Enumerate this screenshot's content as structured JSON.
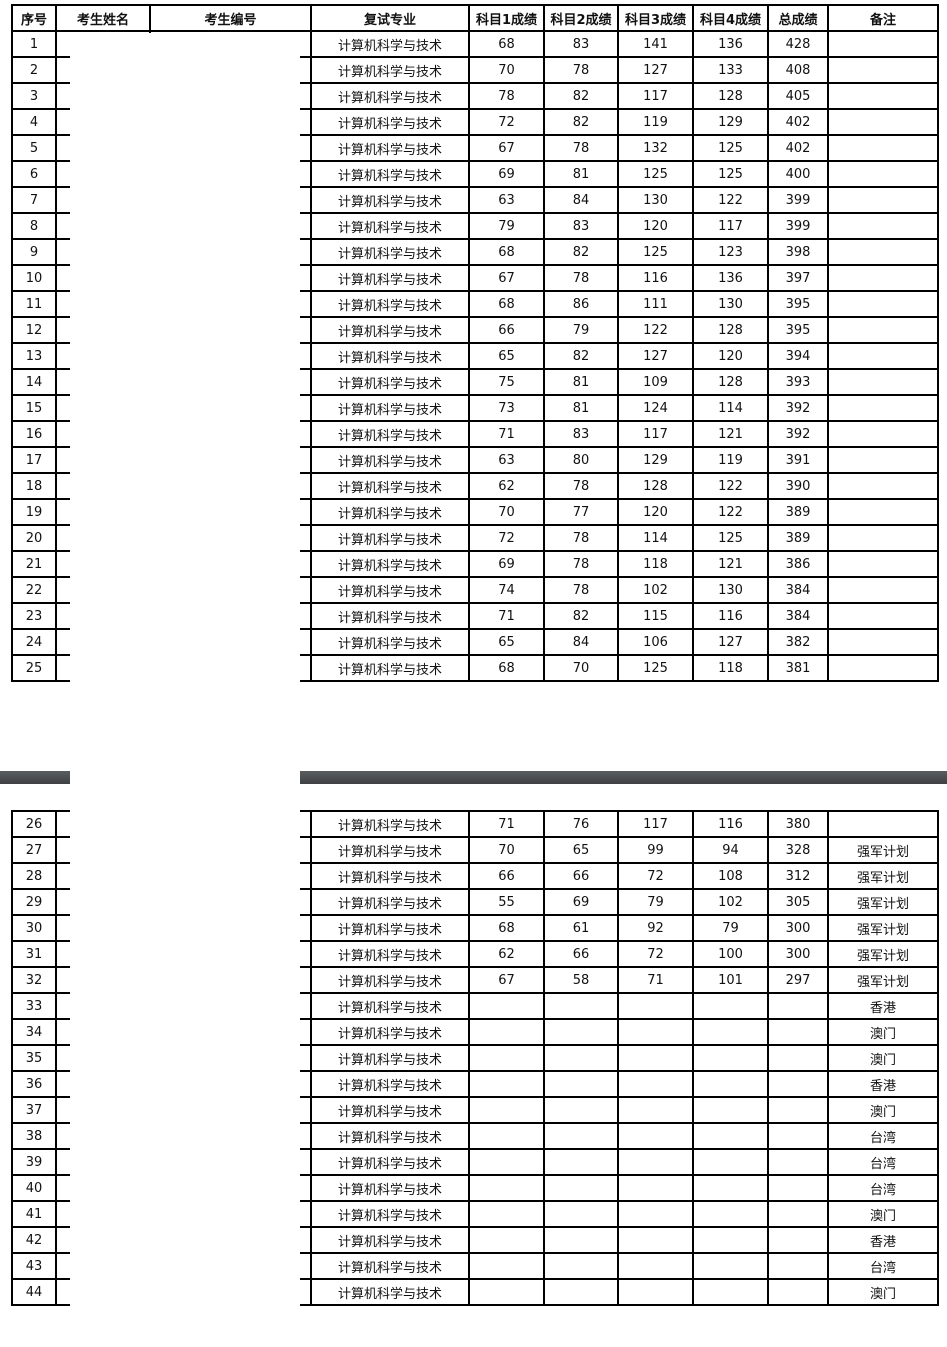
{
  "headers": [
    "序号",
    "考生姓名",
    "考生编号",
    "复试专业",
    "科目1成绩",
    "科目2成绩",
    "科目3成绩",
    "科目4成绩",
    "总成绩",
    "备注"
  ],
  "rows_page1": [
    [
      "1",
      "计算机科学与技术",
      "68",
      "83",
      "141",
      "136",
      "428",
      ""
    ],
    [
      "2",
      "计算机科学与技术",
      "70",
      "78",
      "127",
      "133",
      "408",
      ""
    ],
    [
      "3",
      "计算机科学与技术",
      "78",
      "82",
      "117",
      "128",
      "405",
      ""
    ],
    [
      "4",
      "计算机科学与技术",
      "72",
      "82",
      "119",
      "129",
      "402",
      ""
    ],
    [
      "5",
      "计算机科学与技术",
      "67",
      "78",
      "132",
      "125",
      "402",
      ""
    ],
    [
      "6",
      "计算机科学与技术",
      "69",
      "81",
      "125",
      "125",
      "400",
      ""
    ],
    [
      "7",
      "计算机科学与技术",
      "63",
      "84",
      "130",
      "122",
      "399",
      ""
    ],
    [
      "8",
      "计算机科学与技术",
      "79",
      "83",
      "120",
      "117",
      "399",
      ""
    ],
    [
      "9",
      "计算机科学与技术",
      "68",
      "82",
      "125",
      "123",
      "398",
      ""
    ],
    [
      "10",
      "计算机科学与技术",
      "67",
      "78",
      "116",
      "136",
      "397",
      ""
    ],
    [
      "11",
      "计算机科学与技术",
      "68",
      "86",
      "111",
      "130",
      "395",
      ""
    ],
    [
      "12",
      "计算机科学与技术",
      "66",
      "79",
      "122",
      "128",
      "395",
      ""
    ],
    [
      "13",
      "计算机科学与技术",
      "65",
      "82",
      "127",
      "120",
      "394",
      ""
    ],
    [
      "14",
      "计算机科学与技术",
      "75",
      "81",
      "109",
      "128",
      "393",
      ""
    ],
    [
      "15",
      "计算机科学与技术",
      "73",
      "81",
      "124",
      "114",
      "392",
      ""
    ],
    [
      "16",
      "计算机科学与技术",
      "71",
      "83",
      "117",
      "121",
      "392",
      ""
    ],
    [
      "17",
      "计算机科学与技术",
      "63",
      "80",
      "129",
      "119",
      "391",
      ""
    ],
    [
      "18",
      "计算机科学与技术",
      "62",
      "78",
      "128",
      "122",
      "390",
      ""
    ],
    [
      "19",
      "计算机科学与技术",
      "70",
      "77",
      "120",
      "122",
      "389",
      ""
    ],
    [
      "20",
      "计算机科学与技术",
      "72",
      "78",
      "114",
      "125",
      "389",
      ""
    ],
    [
      "21",
      "计算机科学与技术",
      "69",
      "78",
      "118",
      "121",
      "386",
      ""
    ],
    [
      "22",
      "计算机科学与技术",
      "74",
      "78",
      "102",
      "130",
      "384",
      ""
    ],
    [
      "23",
      "计算机科学与技术",
      "71",
      "82",
      "115",
      "116",
      "384",
      ""
    ],
    [
      "24",
      "计算机科学与技术",
      "65",
      "84",
      "106",
      "127",
      "382",
      ""
    ],
    [
      "25",
      "计算机科学与技术",
      "68",
      "70",
      "125",
      "118",
      "381",
      ""
    ]
  ],
  "rows_page2": [
    [
      "26",
      "计算机科学与技术",
      "71",
      "76",
      "117",
      "116",
      "380",
      ""
    ],
    [
      "27",
      "计算机科学与技术",
      "70",
      "65",
      "99",
      "94",
      "328",
      "强军计划"
    ],
    [
      "28",
      "计算机科学与技术",
      "66",
      "66",
      "72",
      "108",
      "312",
      "强军计划"
    ],
    [
      "29",
      "计算机科学与技术",
      "55",
      "69",
      "79",
      "102",
      "305",
      "强军计划"
    ],
    [
      "30",
      "计算机科学与技术",
      "68",
      "61",
      "92",
      "79",
      "300",
      "强军计划"
    ],
    [
      "31",
      "计算机科学与技术",
      "62",
      "66",
      "72",
      "100",
      "300",
      "强军计划"
    ],
    [
      "32",
      "计算机科学与技术",
      "67",
      "58",
      "71",
      "101",
      "297",
      "强军计划"
    ],
    [
      "33",
      "计算机科学与技术",
      "",
      "",
      "",
      "",
      "",
      "香港"
    ],
    [
      "34",
      "计算机科学与技术",
      "",
      "",
      "",
      "",
      "",
      "澳门"
    ],
    [
      "35",
      "计算机科学与技术",
      "",
      "",
      "",
      "",
      "",
      "澳门"
    ],
    [
      "36",
      "计算机科学与技术",
      "",
      "",
      "",
      "",
      "",
      "香港"
    ],
    [
      "37",
      "计算机科学与技术",
      "",
      "",
      "",
      "",
      "",
      "澳门"
    ],
    [
      "38",
      "计算机科学与技术",
      "",
      "",
      "",
      "",
      "",
      "台湾"
    ],
    [
      "39",
      "计算机科学与技术",
      "",
      "",
      "",
      "",
      "",
      "台湾"
    ],
    [
      "40",
      "计算机科学与技术",
      "",
      "",
      "",
      "",
      "",
      "台湾"
    ],
    [
      "41",
      "计算机科学与技术",
      "",
      "",
      "",
      "",
      "",
      "澳门"
    ],
    [
      "42",
      "计算机科学与技术",
      "",
      "",
      "",
      "",
      "",
      "香港"
    ],
    [
      "43",
      "计算机科学与技术",
      "",
      "",
      "",
      "",
      "",
      "台湾"
    ],
    [
      "44",
      "计算机科学与技术",
      "",
      "",
      "",
      "",
      "",
      "澳门"
    ]
  ]
}
